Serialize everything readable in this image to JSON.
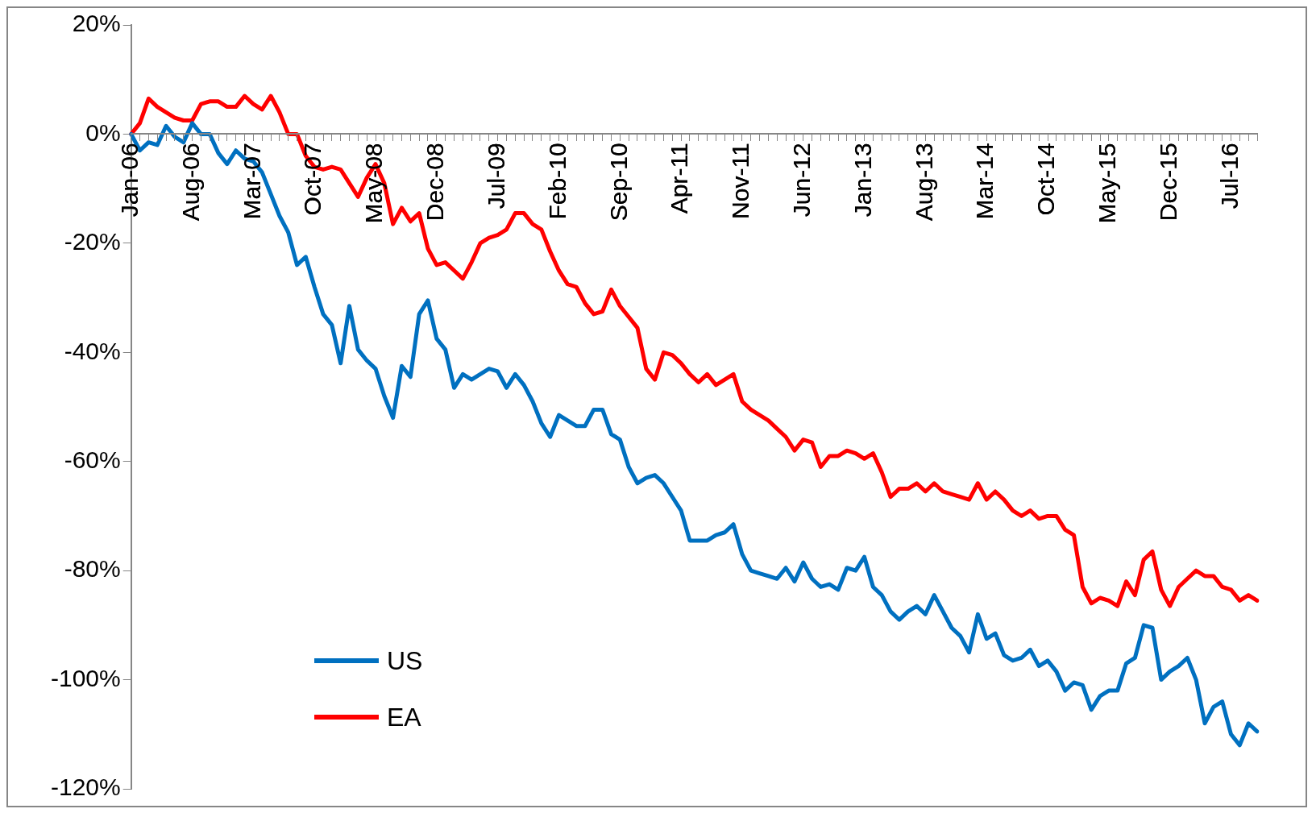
{
  "chart_data": {
    "type": "line",
    "categories": [
      "Jan-06",
      null,
      null,
      null,
      null,
      null,
      null,
      "Aug-06",
      null,
      null,
      null,
      null,
      null,
      null,
      "Mar-07",
      null,
      null,
      null,
      null,
      null,
      null,
      "Oct-07",
      null,
      null,
      null,
      null,
      null,
      null,
      "May-08",
      null,
      null,
      null,
      null,
      null,
      null,
      "Dec-08",
      null,
      null,
      null,
      null,
      null,
      null,
      "Jul-09",
      null,
      null,
      null,
      null,
      null,
      null,
      "Feb-10",
      null,
      null,
      null,
      null,
      null,
      null,
      "Sep-10",
      null,
      null,
      null,
      null,
      null,
      null,
      "Apr-11",
      null,
      null,
      null,
      null,
      null,
      null,
      "Nov-11",
      null,
      null,
      null,
      null,
      null,
      null,
      "Jun-12",
      null,
      null,
      null,
      null,
      null,
      null,
      "Jan-13",
      null,
      null,
      null,
      null,
      null,
      null,
      "Aug-13",
      null,
      null,
      null,
      null,
      null,
      null,
      "Mar-14",
      null,
      null,
      null,
      null,
      null,
      null,
      "Oct-14",
      null,
      null,
      null,
      null,
      null,
      null,
      "May-15",
      null,
      null,
      null,
      null,
      null,
      null,
      "Dec-15",
      null,
      null,
      null,
      null,
      null,
      null,
      "Jul-16",
      null,
      null,
      null
    ],
    "series": [
      {
        "name": "US",
        "color": "#0070c0",
        "values": [
          0,
          -3,
          -1.5,
          -2,
          1.5,
          -0.5,
          -1.5,
          2,
          0,
          0,
          -3.5,
          -5.5,
          -3,
          -4.5,
          -5,
          -7,
          -11,
          -15,
          -18,
          -24,
          -22.5,
          -28,
          -33,
          -35,
          -42,
          -31.5,
          -39.5,
          -41.5,
          -43,
          -48,
          -52,
          -42.5,
          -44.5,
          -33,
          -30.5,
          -37.5,
          -39.5,
          -46.5,
          -44,
          -45,
          -44,
          -43,
          -43.5,
          -46.5,
          -44,
          -46,
          -49,
          -53,
          -55.5,
          -51.5,
          -52.5,
          -53.5,
          -53.5,
          -50.5,
          -50.5,
          -55,
          -56,
          -61,
          -64,
          -63,
          -62.5,
          -64,
          -66.5,
          -69,
          -74.5,
          -74.5,
          -74.5,
          -73.5,
          -73,
          -71.5,
          -77,
          -80,
          -80.5,
          -81,
          -81.5,
          -79.5,
          -82,
          -78.5,
          -81.5,
          -83,
          -82.5,
          -83.5,
          -79.5,
          -80,
          -77.5,
          -83,
          -84.5,
          -87.5,
          -89,
          -87.5,
          -86.5,
          -88,
          -84.5,
          -87.5,
          -90.5,
          -92,
          -95,
          -88,
          -92.5,
          -91.5,
          -95.5,
          -96.5,
          -96,
          -94.5,
          -97.5,
          -96.5,
          -98.5,
          -102,
          -100.5,
          -101,
          -105.5,
          -103,
          -102,
          -102,
          -97,
          -96,
          -90,
          -90.5,
          -100,
          -98.5,
          -97.5,
          -96,
          -100,
          -108,
          -105,
          -104,
          -110,
          -112,
          -108,
          -109.5
        ]
      },
      {
        "name": "EA",
        "color": "#ff0000",
        "values": [
          0,
          2,
          6.5,
          5,
          4,
          3,
          2.5,
          2.5,
          5.5,
          6,
          6,
          5,
          5,
          7,
          5.5,
          4.5,
          7,
          4,
          0,
          0,
          -4,
          -6,
          -6.5,
          -6,
          -6.5,
          -9,
          -11.5,
          -8,
          -5.5,
          -9,
          -16.5,
          -13.5,
          -16,
          -14.5,
          -21,
          -24,
          -23.5,
          -25,
          -26.5,
          -23.5,
          -20,
          -19,
          -18.5,
          -17.5,
          -14.5,
          -14.5,
          -16.5,
          -17.5,
          -21.5,
          -25,
          -27.5,
          -28,
          -31,
          -33,
          -32.5,
          -28.5,
          -31.5,
          -33.5,
          -35.5,
          -43,
          -45,
          -40,
          -40.5,
          -42,
          -44,
          -45.5,
          -44,
          -46,
          -45,
          -44,
          -49,
          -50.5,
          -51.5,
          -52.5,
          -54,
          -55.5,
          -58,
          -56,
          -56.5,
          -61,
          -59,
          -59,
          -58,
          -58.5,
          -59.5,
          -58.5,
          -62,
          -66.5,
          -65,
          -65,
          -64,
          -65.5,
          -64,
          -65.5,
          -66,
          -66.5,
          -67,
          -64,
          -67,
          -65.5,
          -67,
          -69,
          -70,
          -69,
          -70.5,
          -70,
          -70,
          -72.5,
          -73.5,
          -83,
          -86,
          -85,
          -85.5,
          -86.5,
          -82,
          -84.5,
          -78,
          -76.5,
          -83.5,
          -86.5,
          -83,
          -81.5,
          -80,
          -81,
          -81,
          -83,
          -83.5,
          -85.5,
          -84.5,
          -85.5
        ]
      }
    ],
    "ylim": [
      -120,
      20
    ],
    "yticks": [
      {
        "value": -120,
        "label": "-120%"
      },
      {
        "value": -100,
        "label": "-100%"
      },
      {
        "value": -80,
        "label": "-80%"
      },
      {
        "value": -60,
        "label": "-60%"
      },
      {
        "value": -40,
        "label": "-40%"
      },
      {
        "value": -20,
        "label": "-20%"
      },
      {
        "value": 0,
        "label": "0%"
      },
      {
        "value": 20,
        "label": "20%"
      }
    ],
    "grid": false,
    "legend": "bottom",
    "marker": "none",
    "line_style": "solid"
  }
}
